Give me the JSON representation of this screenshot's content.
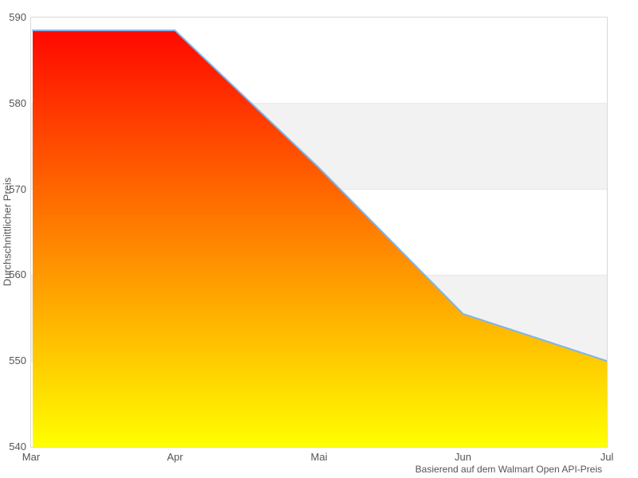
{
  "chart_data": {
    "type": "area",
    "title": "",
    "categories": [
      "Mar",
      "Apr",
      "Mai",
      "Jun",
      "Jul"
    ],
    "values": [
      588.5,
      588.5,
      572.5,
      555.5,
      550
    ],
    "series_name": "Durchschnittlicher Preis",
    "xlabel": "",
    "ylabel": "Durchschnittlicher Preis",
    "caption": "Basierend auf dem Walmart Open API-Preis",
    "ylim": [
      540,
      590
    ],
    "yticks": [
      540,
      550,
      560,
      570,
      580,
      590
    ],
    "grid": "alternate-horizontal-bands",
    "legend": "none",
    "colors": {
      "line": "#7cb5ec",
      "fill_top": "#ff0000",
      "fill_bottom": "#ffff00",
      "band": "#f2f2f2",
      "gridline": "#e6e6e6",
      "plot_border": "#d9d9d9",
      "tick_text": "#555555",
      "caption_text": "#555555",
      "background": "#ffffff"
    }
  }
}
